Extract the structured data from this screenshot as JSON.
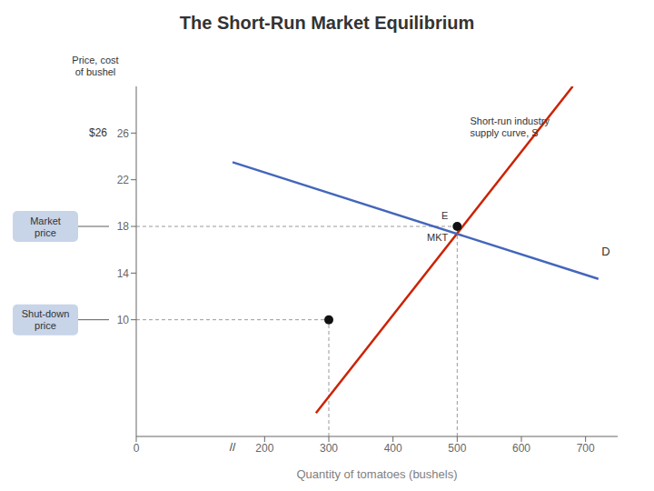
{
  "chart_data": {
    "type": "line",
    "title": "The Short-Run Market Equilibrium",
    "xlabel": "Quantity of tomatoes (bushels)",
    "ylabel": "Price, cost\nof bushel",
    "xlim": [
      0,
      750
    ],
    "ylim": [
      0,
      30
    ],
    "xticks": [
      0,
      200,
      300,
      400,
      500,
      600,
      700
    ],
    "yticks": [
      10,
      14,
      18,
      22,
      26
    ],
    "grid": false,
    "series": [
      {
        "color": "#CC2200",
        "x": [
          280,
          680
        ],
        "values": [
          2,
          30
        ]
      },
      {
        "color": "#4466BB",
        "x": [
          150,
          720
        ],
        "values": [
          23.5,
          13.5
        ]
      }
    ],
    "points": [
      {
        "x": 500,
        "y": 18,
        "color": "#111111",
        "labels": [
          "E",
          "MKT"
        ]
      },
      {
        "x": 300,
        "y": 10,
        "color": "#111111"
      }
    ],
    "annotations": [
      {
        "text": "Short-run industry\nsupply curve, S",
        "x": 520,
        "y": 27.5
      },
      {
        "text": "D",
        "x": 725,
        "y": 15.8
      },
      {
        "text": "$26",
        "y": 26
      },
      {
        "text": "//",
        "x": 150
      },
      {
        "text": "Market\nprice",
        "y": 18
      },
      {
        "text": "Shut-down\nprice",
        "y": 10
      }
    ]
  }
}
